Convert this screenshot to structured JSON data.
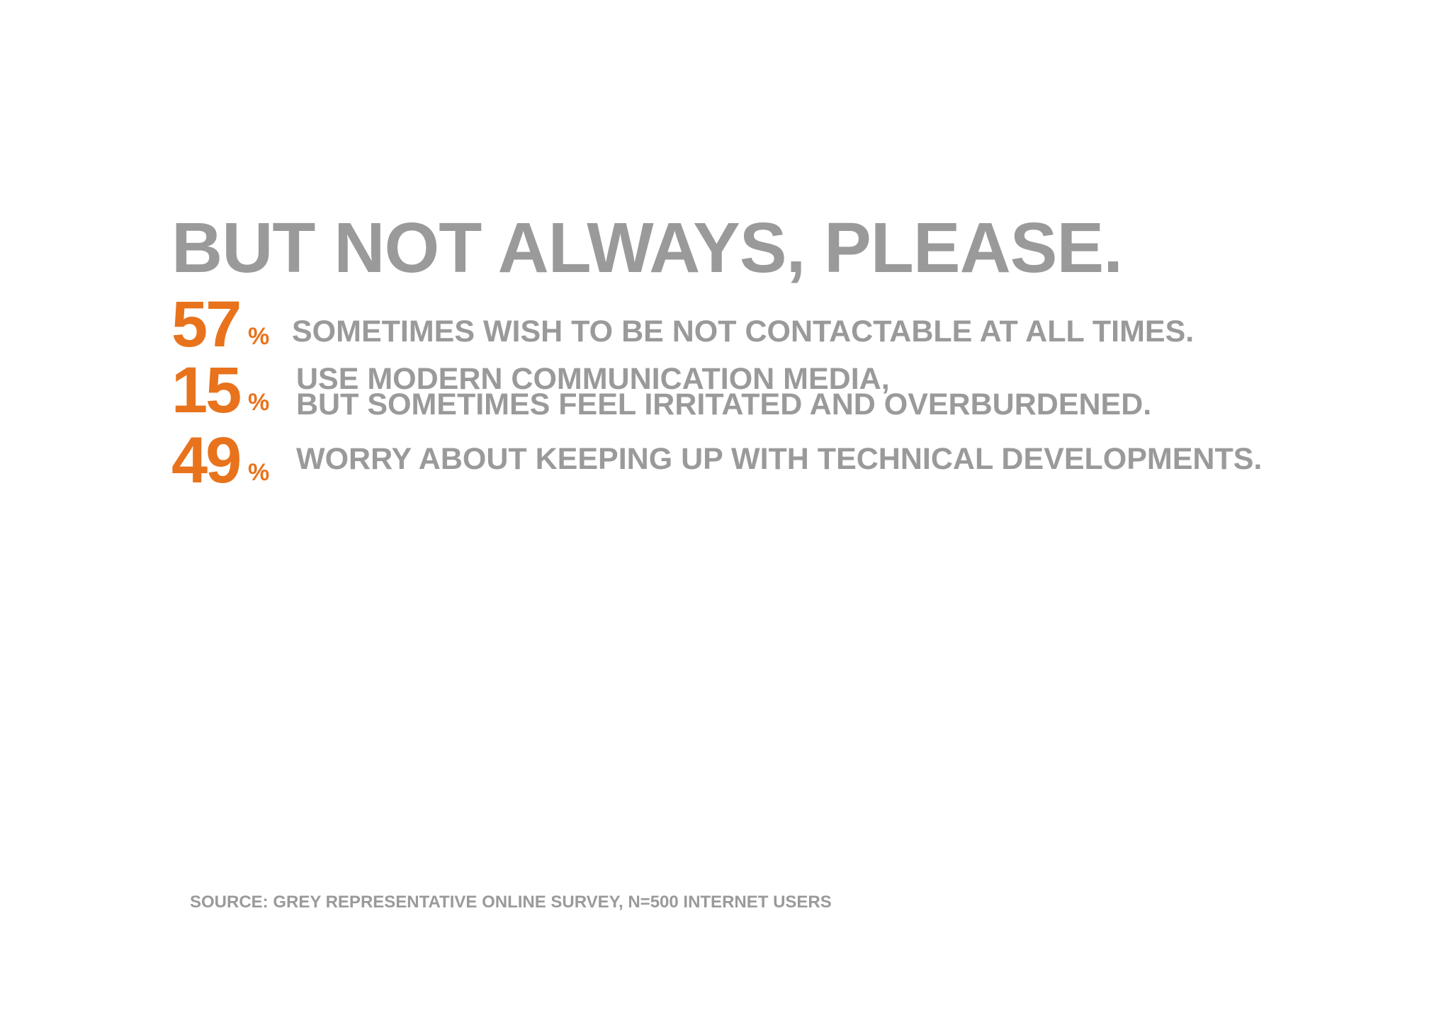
{
  "headline": "BUT NOT ALWAYS, PLEASE.",
  "stats": [
    {
      "value": "57",
      "unit": "%",
      "lines": [
        "SOMETIMES WISH TO BE NOT CONTACTABLE AT ALL TIMES."
      ]
    },
    {
      "value": "15",
      "unit": "%",
      "lines": [
        "USE MODERN COMMUNICATION MEDIA,",
        "BUT SOMETIMES FEEL IRRITATED AND OVERBURDENED."
      ]
    },
    {
      "value": "49",
      "unit": "%",
      "lines": [
        "WORRY ABOUT KEEPING UP WITH TECHNICAL DEVELOPMENTS."
      ]
    }
  ],
  "source": "SOURCE: GREY REPRESENTATIVE ONLINE SURVEY, N=500 INTERNET USERS",
  "colors": {
    "accent": "#e8731c",
    "text": "#9a9a9a",
    "background": "#ffffff"
  }
}
